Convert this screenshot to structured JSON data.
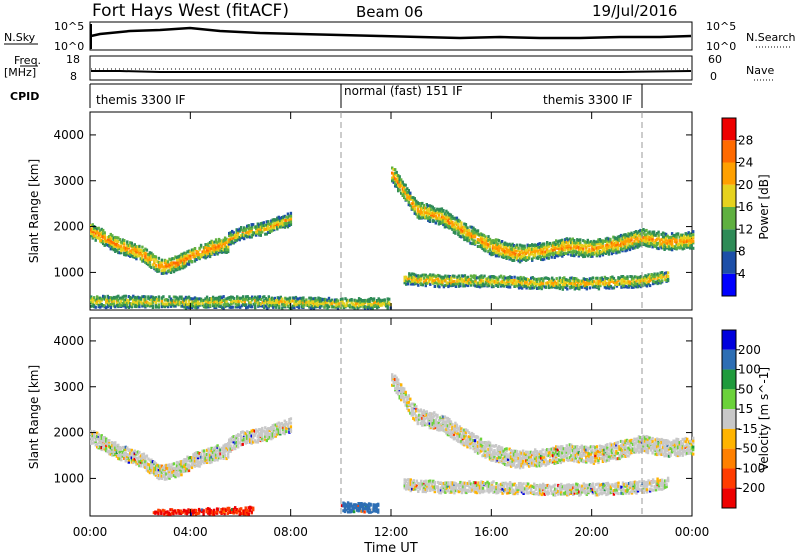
{
  "header": {
    "radar": "Fort Hays West (fitACF)",
    "beam": "Beam 06",
    "date": "19/Jul/2016"
  },
  "top_panels": {
    "nsky_label": "N.Sky",
    "nsky_ticks": [
      "10^5",
      "10^0"
    ],
    "nsearch_label": "N.Search",
    "nsearch_ticks": [
      "10^5",
      "10^0"
    ],
    "freq_label": "Freq.",
    "freq_unit": "[MHz]",
    "freq_ticks": [
      "18",
      "8"
    ],
    "nave_label": "Nave",
    "nave_ticks": [
      "60",
      "0"
    ],
    "cpid_label": "CPID",
    "cpid_segments": [
      {
        "label": "themis 3300 IF",
        "start_hour": 0,
        "end_hour": 10
      },
      {
        "label": "normal (fast) 151 IF",
        "start_hour": 10,
        "end_hour": 22
      },
      {
        "label": "themis 3300 IF",
        "start_hour": 22,
        "end_hour": 24
      }
    ]
  },
  "x_axis": {
    "label": "Time UT",
    "ticks": [
      "00:00",
      "04:00",
      "08:00",
      "12:00",
      "16:00",
      "20:00",
      "00:00"
    ]
  },
  "colors": {
    "power_scale": [
      "#0000ff",
      "#1c4fa8",
      "#2e8b57",
      "#5fb040",
      "#e6d21e",
      "#ffa000",
      "#ff6a00",
      "#ee0000"
    ],
    "velocity_scale": [
      "#0000dd",
      "#2d6eb4",
      "#1f9a3c",
      "#6bd23a",
      "#c8c8c8",
      "#ffb400",
      "#ff8000",
      "#ff3c00",
      "#ee0000"
    ]
  },
  "chart_data": [
    {
      "type": "heatmap",
      "title": "",
      "xlabel": "",
      "ylabel": "Slant Range [km]",
      "xlim": [
        0,
        24
      ],
      "ylim": [
        180,
        4500
      ],
      "yticks": [
        "1000",
        "2000",
        "3000",
        "4000"
      ],
      "colorbar": {
        "label": "Power [dB]",
        "ticks": [
          "4",
          "8",
          "12",
          "16",
          "20",
          "24",
          "28"
        ],
        "range": [
          0,
          32
        ]
      },
      "echo_bands": [
        {
          "hours": [
            0,
            1,
            2,
            2.8,
            3.5,
            4.2,
            5,
            5.5
          ],
          "range_km": [
            1950,
            1650,
            1450,
            1150,
            1250,
            1450,
            1600,
            1650
          ],
          "half_width_km": 150,
          "peak_db": 26
        },
        {
          "hours": [
            5.5,
            6,
            7,
            8
          ],
          "range_km": [
            1750,
            1900,
            2000,
            2200
          ],
          "half_width_km": 120,
          "peak_db": 22
        },
        {
          "hours": [
            12,
            12.5,
            13,
            14,
            15,
            16,
            17,
            18,
            19,
            20,
            21,
            22,
            23,
            24
          ],
          "range_km": [
            3200,
            2800,
            2400,
            2250,
            1900,
            1600,
            1450,
            1500,
            1600,
            1550,
            1650,
            1800,
            1700,
            1750
          ],
          "half_width_km": 170,
          "peak_db": 24
        },
        {
          "hours": [
            12.5,
            14,
            16,
            18,
            20,
            22,
            23
          ],
          "range_km": [
            900,
            850,
            850,
            800,
            800,
            850,
            950
          ],
          "half_width_km": 110,
          "peak_db": 22
        },
        {
          "hours": [
            0,
            2,
            4,
            6,
            8,
            10,
            12
          ],
          "range_km": [
            400,
            400,
            380,
            400,
            380,
            350,
            350
          ],
          "half_width_km": 110,
          "peak_db": 20
        }
      ]
    },
    {
      "type": "heatmap",
      "title": "",
      "xlabel": "Time UT",
      "ylabel": "Slant Range [km]",
      "xlim": [
        0,
        24
      ],
      "ylim": [
        180,
        4500
      ],
      "yticks": [
        "1000",
        "2000",
        "3000",
        "4000"
      ],
      "colorbar": {
        "label": "Velocity [m s^-1]",
        "ticks": [
          "200",
          "100",
          "50",
          "15",
          "-15",
          "-50",
          "-100",
          "-200"
        ],
        "range": [
          -250,
          250
        ]
      },
      "echo_bands": [
        {
          "hours": [
            0,
            1,
            2,
            2.8,
            3.5,
            4.2,
            5,
            5.5
          ],
          "range_km": [
            1950,
            1650,
            1450,
            1150,
            1250,
            1450,
            1600,
            1650
          ],
          "half_width_km": 150,
          "velocity": 0
        },
        {
          "hours": [
            5.5,
            6,
            7,
            8
          ],
          "range_km": [
            1750,
            1900,
            2000,
            2200
          ],
          "half_width_km": 120,
          "velocity": 0
        },
        {
          "hours": [
            12,
            12.5,
            13,
            14,
            15,
            16,
            17,
            18,
            19,
            20,
            21,
            22,
            23,
            24
          ],
          "range_km": [
            3200,
            2800,
            2400,
            2250,
            1900,
            1600,
            1450,
            1500,
            1600,
            1550,
            1650,
            1800,
            1700,
            1750
          ],
          "half_width_km": 170,
          "velocity": 0
        },
        {
          "hours": [
            12.5,
            14,
            16,
            18,
            20,
            22,
            23
          ],
          "range_km": [
            900,
            850,
            850,
            800,
            800,
            850,
            950
          ],
          "half_width_km": 110,
          "velocity": 0
        },
        {
          "hours": [
            2.5,
            3.5,
            4.5,
            5.5,
            6.5
          ],
          "range_km": [
            250,
            260,
            280,
            300,
            330
          ],
          "half_width_km": 90,
          "velocity": -150
        },
        {
          "hours": [
            10,
            10.5,
            11,
            11.5
          ],
          "range_km": [
            400,
            400,
            390,
            380
          ],
          "half_width_km": 80,
          "velocity": 120
        }
      ]
    }
  ]
}
